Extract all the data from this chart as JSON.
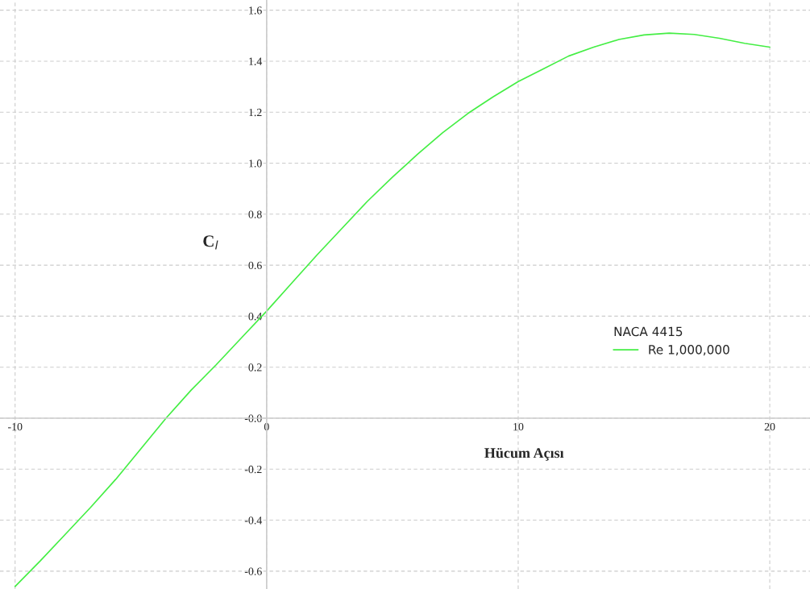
{
  "chart_data": {
    "type": "line",
    "xlabel": "Hücum Açısı",
    "ylabel": "C$_{l}$",
    "legend_title": "NACA 4415",
    "x": [
      -10,
      -9,
      -8,
      -7,
      -6,
      -5,
      -4,
      -3,
      -2,
      -1,
      0,
      1,
      2,
      3,
      4,
      5,
      6,
      7,
      8,
      9,
      10,
      11,
      12,
      13,
      14,
      15,
      16,
      17,
      18,
      19,
      20
    ],
    "series": [
      {
        "name": "Re 1,000,000",
        "color": "#44ee44",
        "values": [
          -0.66,
          -0.56,
          -0.455,
          -0.35,
          -0.24,
          -0.12,
          0.0,
          0.11,
          0.21,
          0.315,
          0.42,
          0.53,
          0.64,
          0.745,
          0.85,
          0.945,
          1.035,
          1.12,
          1.195,
          1.26,
          1.32,
          1.37,
          1.42,
          1.455,
          1.485,
          1.503,
          1.51,
          1.505,
          1.49,
          1.47,
          1.455
        ]
      }
    ],
    "xlim": [
      -10.6,
      21.6
    ],
    "ylim": [
      -0.67,
      1.64
    ],
    "xticks": [
      -10,
      0,
      10,
      20
    ],
    "yticks": [
      -0.6,
      -0.4,
      -0.2,
      {
        "value": 0,
        "label": "-0.0"
      },
      0.2,
      0.4,
      0.6,
      0.8,
      {
        "value": 1,
        "label": "1.0"
      },
      1.2,
      1.4,
      1.6
    ],
    "grid": true,
    "legend": "right",
    "marker": "none",
    "line_style": "solid"
  }
}
